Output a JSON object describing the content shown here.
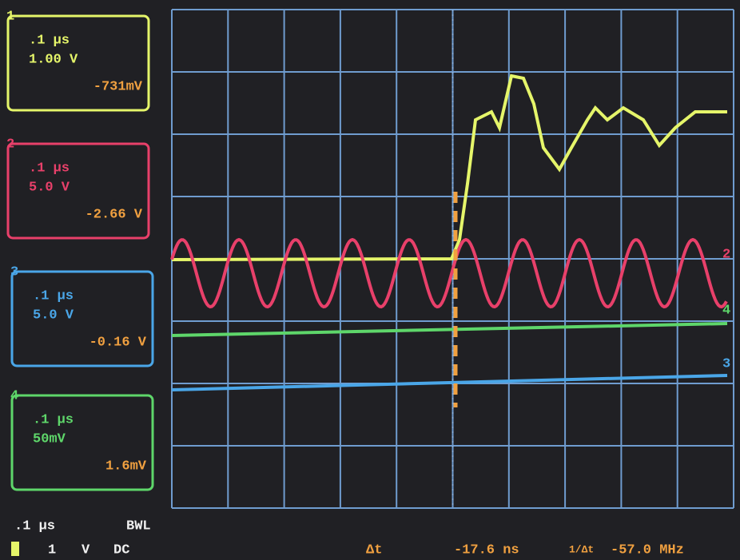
{
  "channels": [
    {
      "number": "1",
      "timebase": ".1 µs",
      "scale": "1.00 V",
      "offset": "-731mV"
    },
    {
      "number": "2",
      "timebase": ".1 µs",
      "scale": "5.0 V",
      "offset": "-2.66 V"
    },
    {
      "number": "3",
      "timebase": ".1 µs",
      "scale": "5.0 V",
      "offset": "-0.16 V"
    },
    {
      "number": "4",
      "timebase": ".1 µs",
      "scale": "50mV",
      "offset": "1.6mV"
    }
  ],
  "status": {
    "timebase": ".1 µs",
    "bandwidth": "BWL",
    "trigger_source": "1",
    "trigger_unit": "V",
    "coupling": "DC",
    "delta_label": "Δt",
    "delta_value": "-17.6 ns",
    "freq_label": "1/Δt",
    "freq_value": "-57.0 MHz"
  }
}
